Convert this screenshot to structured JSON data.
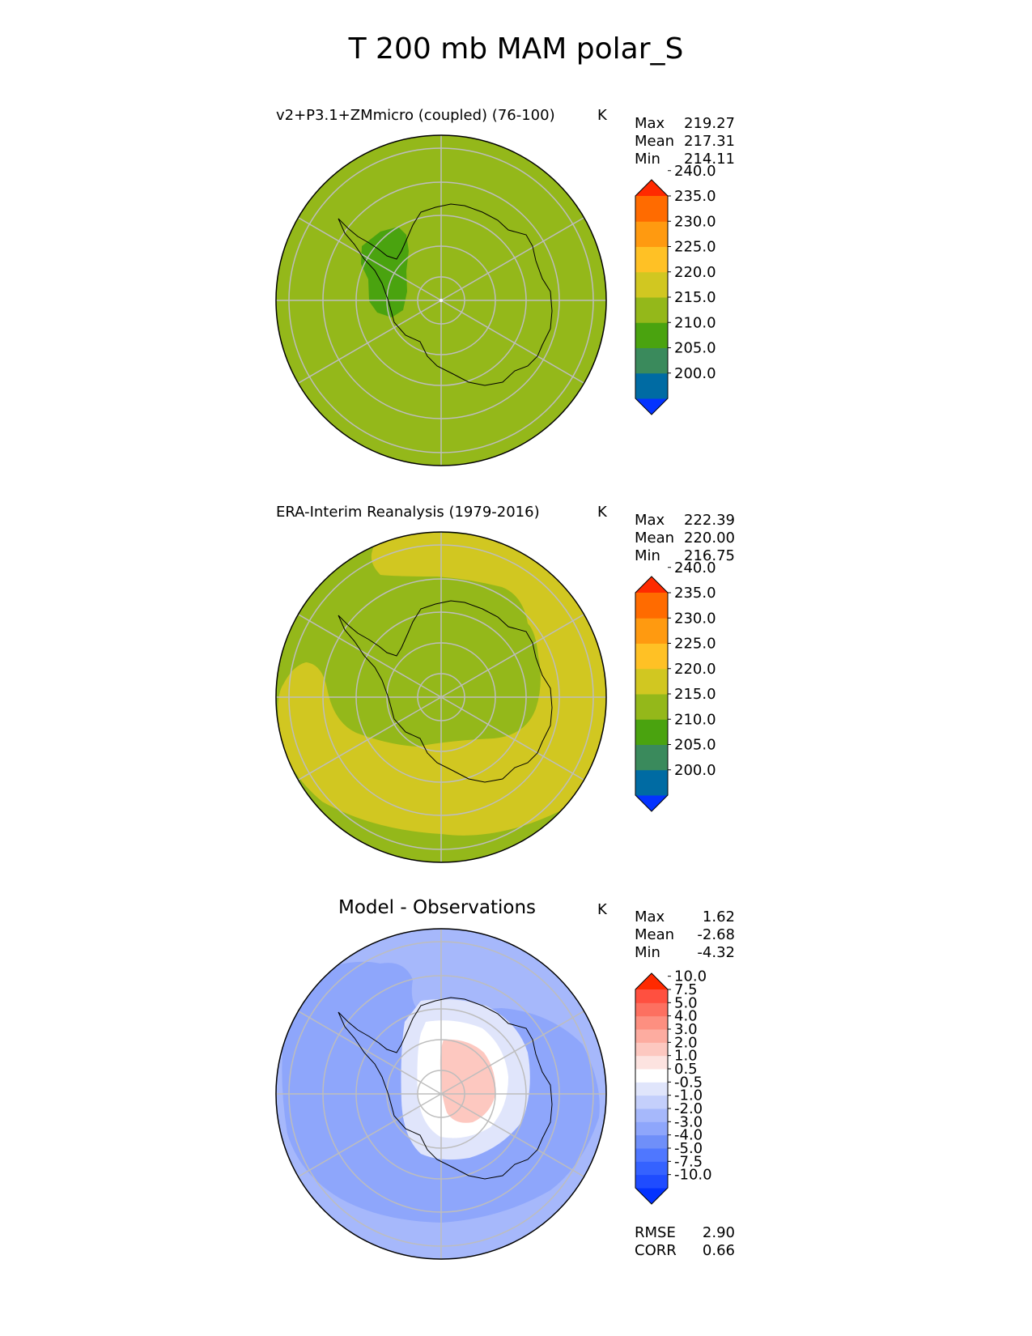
{
  "figure": {
    "title": "T 200 mb MAM polar_S"
  },
  "chart_data": [
    {
      "type": "heatmap",
      "projection": "south polar stereographic",
      "title": "v2+P3.1+ZMmicro (coupled) (76-100)",
      "units": "K",
      "stats": [
        {
          "label": "Max",
          "value": "219.27"
        },
        {
          "label": "Mean",
          "value": "217.31"
        },
        {
          "label": "Min",
          "value": "214.11"
        }
      ],
      "colorbar": {
        "levels": [
          200,
          205,
          210,
          215,
          220,
          225,
          230,
          235,
          240
        ],
        "tick_labels": [
          "200.0",
          "205.0",
          "210.0",
          "215.0",
          "220.0",
          "225.0",
          "230.0",
          "235.0",
          "240.0"
        ],
        "colors": [
          "#0433ff",
          "#006ba3",
          "#3a8a5c",
          "#4aa30f",
          "#94b81a",
          "#d1c721",
          "#ffc125",
          "#ff9a10",
          "#ff6b00",
          "#ff2a00"
        ],
        "extend": "both"
      },
      "background_band": "215-220",
      "features": [
        {
          "name": "Weddell / Antarctic Peninsula cold region",
          "band": "210-215"
        }
      ]
    },
    {
      "type": "heatmap",
      "projection": "south polar stereographic",
      "title": "ERA-Interim Reanalysis (1979-2016)",
      "units": "K",
      "stats": [
        {
          "label": "Max",
          "value": "222.39"
        },
        {
          "label": "Mean",
          "value": "220.00"
        },
        {
          "label": "Min",
          "value": "216.75"
        }
      ],
      "colorbar": {
        "levels": [
          200,
          205,
          210,
          215,
          220,
          225,
          230,
          235,
          240
        ],
        "tick_labels": [
          "200.0",
          "205.0",
          "210.0",
          "215.0",
          "220.0",
          "225.0",
          "230.0",
          "235.0",
          "240.0"
        ],
        "colors": [
          "#0433ff",
          "#006ba3",
          "#3a8a5c",
          "#4aa30f",
          "#94b81a",
          "#d1c721",
          "#ffc125",
          "#ff9a10",
          "#ff6b00",
          "#ff2a00"
        ],
        "extend": "both"
      },
      "background_band": "215-220",
      "features": [
        {
          "name": "mid-latitude warm ring",
          "band": "220-225"
        }
      ]
    },
    {
      "type": "heatmap",
      "projection": "south polar stereographic",
      "title": "Model - Observations",
      "units": "K",
      "stats": [
        {
          "label": "Max",
          "value": "1.62"
        },
        {
          "label": "Mean",
          "value": "-2.68"
        },
        {
          "label": "Min",
          "value": "-4.32"
        }
      ],
      "colorbar": {
        "levels": [
          -10,
          -7.5,
          -5,
          -4,
          -3,
          -2,
          -1,
          -0.5,
          0.5,
          1,
          2,
          3,
          4,
          5,
          7.5,
          10
        ],
        "tick_labels": [
          "-10.0",
          "-7.5",
          "-5.0",
          "-4.0",
          "-3.0",
          "-2.0",
          "-1.0",
          "-0.5",
          "0.5",
          "1.0",
          "2.0",
          "3.0",
          "4.0",
          "5.0",
          "7.5",
          "10.0"
        ],
        "colors": [
          "#0433ff",
          "#1f4cff",
          "#3562ff",
          "#4f77ff",
          "#6f8ff9",
          "#8ea6fb",
          "#a6b8fb",
          "#c4cffb",
          "#e0e5fb",
          "#ffffff",
          "#fde3e0",
          "#fdc8c0",
          "#fdaca0",
          "#fd8f80",
          "#fd7060",
          "#ff5040",
          "#ff2a00"
        ],
        "extend": "both"
      },
      "background_band": "-3.0 to -2.0",
      "features": [
        {
          "name": "outer ring",
          "band": "-3.0 to -2.0"
        },
        {
          "name": "mid-latitude cold belt",
          "band": "-4.0 to -3.0"
        },
        {
          "name": "polar warm anomaly",
          "band": "0.5 to 1.0"
        }
      ],
      "metrics": [
        {
          "label": "RMSE",
          "value": "2.90"
        },
        {
          "label": "CORR",
          "value": "0.66"
        }
      ]
    }
  ]
}
